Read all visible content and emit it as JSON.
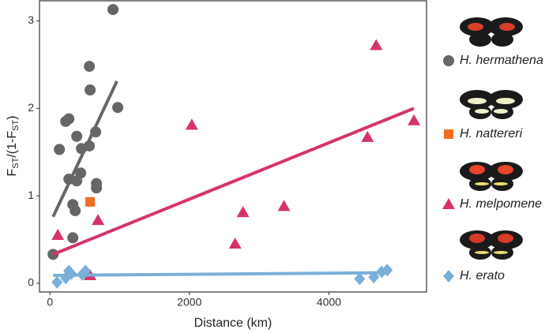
{
  "chart_data": {
    "type": "scatter",
    "xlabel": "Distance (km)",
    "ylabel_parts": [
      "F",
      "ST",
      "/(1-F",
      "ST",
      ")"
    ],
    "xlim": [
      -150,
      5400
    ],
    "ylim": [
      -0.1,
      3.23
    ],
    "xticks": [
      0,
      2000,
      4000
    ],
    "yticks": [
      0,
      1,
      2,
      3
    ],
    "series": [
      {
        "name": "H. hermathena",
        "color": "#666666",
        "marker": "circle",
        "x": [
          45,
          135,
          226,
          271,
          271,
          328,
          362,
          328,
          384,
          384,
          452,
          441,
          565,
          576,
          565,
          655,
          667,
          667,
          904,
          972
        ],
        "values": [
          0.33,
          1.53,
          1.85,
          1.88,
          1.19,
          0.9,
          0.83,
          0.52,
          1.68,
          1.17,
          1.54,
          1.26,
          2.48,
          2.21,
          1.57,
          1.73,
          1.14,
          1.09,
          3.13,
          2.01
        ],
        "fit_x": [
          45,
          960
        ],
        "fit_y": [
          0.76,
          2.31
        ]
      },
      {
        "name": "H. nattereri",
        "color": "#f26d21",
        "marker": "square",
        "x": [
          576
        ],
        "values": [
          0.93
        ]
      },
      {
        "name": "H. melpomene",
        "color": "#d6336c",
        "marker": "triangle",
        "x": [
          113,
          576,
          689,
          2034,
          2655,
          2768,
          3356,
          4554,
          4678,
          5220
        ],
        "values": [
          0.55,
          0.09,
          0.72,
          1.81,
          0.45,
          0.81,
          0.88,
          1.67,
          2.72,
          1.86
        ],
        "fit_x": [
          45,
          5220
        ],
        "fit_y": [
          0.33,
          2.0
        ]
      },
      {
        "name": "H. erato",
        "color": "#7aafd8",
        "marker": "diamond",
        "x": [
          102,
          226,
          271,
          305,
          463,
          508,
          4441,
          4644,
          4757,
          4836
        ],
        "values": [
          0.01,
          0.06,
          0.14,
          0.11,
          0.1,
          0.14,
          0.05,
          0.07,
          0.13,
          0.15
        ],
        "fit_x": [
          45,
          4850
        ],
        "fit_y": [
          0.09,
          0.12
        ]
      }
    ]
  }
}
